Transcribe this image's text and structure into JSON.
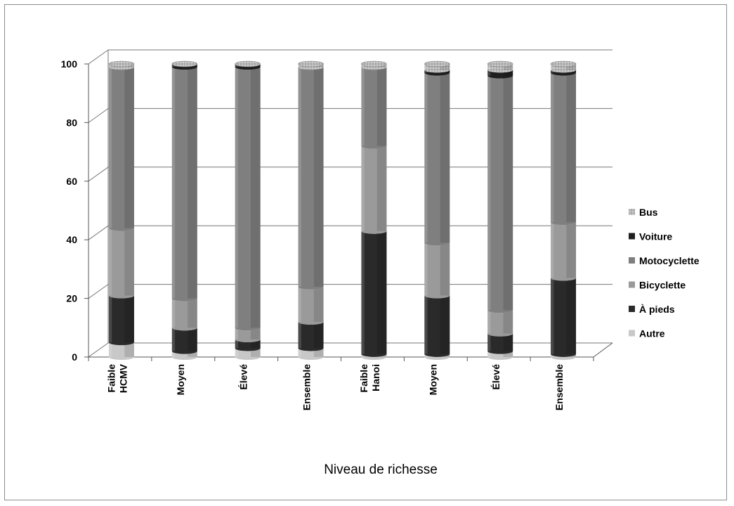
{
  "chart_data": {
    "type": "bar",
    "stacked": true,
    "orientation": "vertical",
    "style": "3d-cylinder",
    "title": "",
    "xlabel": "Niveau de richesse",
    "ylabel": "",
    "ylim": [
      0,
      100
    ],
    "yticks": [
      0,
      20,
      40,
      60,
      80,
      100
    ],
    "grid": true,
    "legend_position": "right",
    "categories": [
      [
        "Faible",
        "HCMV"
      ],
      [
        "Moyen"
      ],
      [
        "Élevé"
      ],
      [
        "Ensemble"
      ],
      [
        "Faible",
        "Hanoi"
      ],
      [
        "Moyen"
      ],
      [
        "Élevé"
      ],
      [
        "Ensemble"
      ]
    ],
    "series": [
      {
        "name": "Autre",
        "color": "#c8c8c8",
        "values": [
          5,
          2,
          3,
          3,
          1,
          1,
          2,
          1
        ]
      },
      {
        "name": "À pieds",
        "color": "#2a2a2a",
        "values": [
          16,
          8,
          3,
          9,
          42,
          20,
          6,
          26
        ]
      },
      {
        "name": "Bicyclette",
        "color": "#9a9a9a",
        "values": [
          23,
          10,
          4,
          12,
          29,
          18,
          8,
          19
        ]
      },
      {
        "name": "Motocyclette",
        "color": "#7f7f7f",
        "values": [
          55,
          79,
          89,
          75,
          27,
          58,
          80,
          51
        ]
      },
      {
        "name": "Voiture",
        "color": "#1f1f1f",
        "values": [
          0,
          1,
          1,
          0,
          0,
          1,
          2,
          1
        ]
      },
      {
        "name": "Bus",
        "color": "#b4b4b4",
        "values": [
          1,
          0,
          0,
          1,
          1,
          2,
          2,
          2
        ]
      }
    ]
  }
}
